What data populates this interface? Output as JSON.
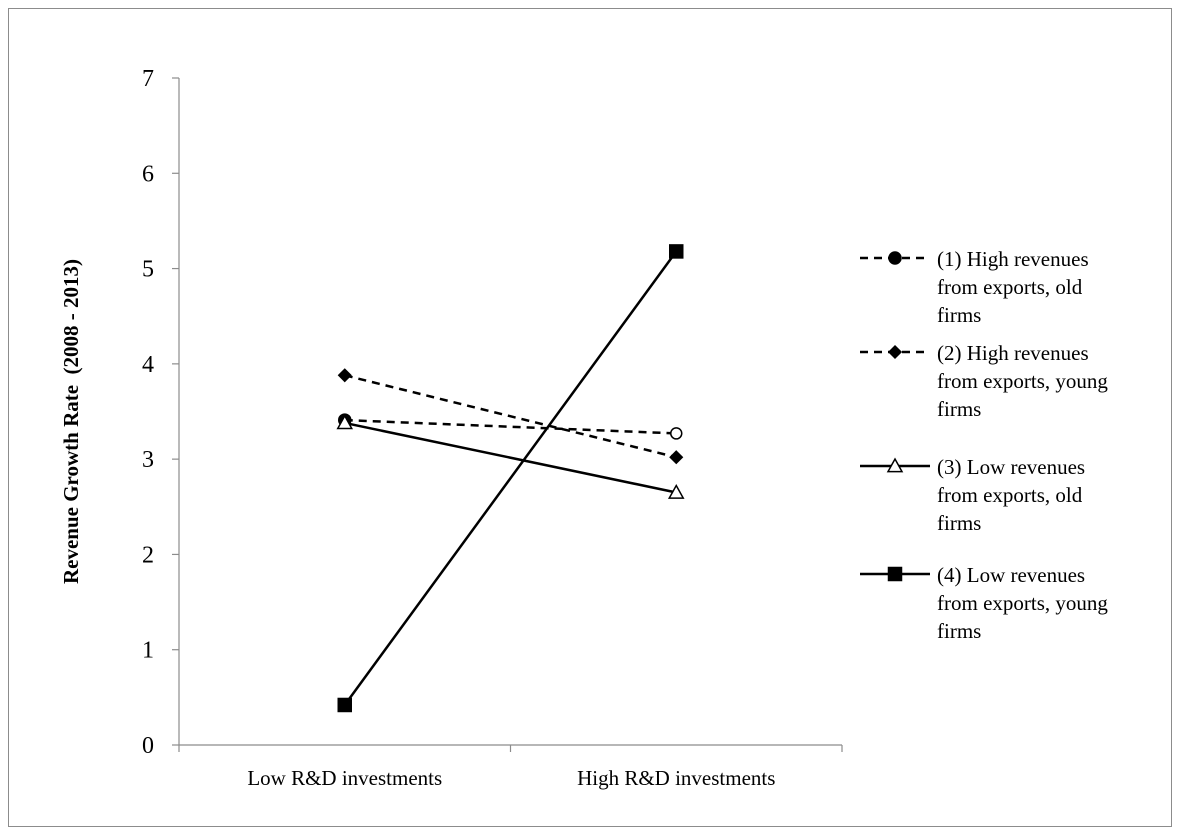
{
  "chart_data": {
    "type": "line",
    "title": "",
    "xlabel": "",
    "ylabel": "Revenue Growth Rate  (2008 - 2013)",
    "categories": [
      "Low R&D investments",
      "High R&D investments"
    ],
    "ylim": [
      0,
      7
    ],
    "yticks": [
      0,
      1,
      2,
      3,
      4,
      5,
      6,
      7
    ],
    "grid": false,
    "legend_position": "right",
    "series": [
      {
        "name": "(1) High revenues from exports, old firms",
        "legend_lines": [
          "(1) High revenues",
          "from exports, old",
          "firms"
        ],
        "values": [
          3.41,
          3.27
        ],
        "line_style": "dashed",
        "markers": [
          "filled-circle",
          "open-circle"
        ],
        "color": "#000000"
      },
      {
        "name": "(2) High revenues from exports, young firms",
        "legend_lines": [
          "(2) High revenues",
          "from exports, young",
          "firms"
        ],
        "values": [
          3.88,
          3.02
        ],
        "line_style": "dashed",
        "markers": [
          "filled-diamond",
          "filled-diamond"
        ],
        "color": "#000000"
      },
      {
        "name": "(3) Low revenues from exports, old firms",
        "legend_lines": [
          "(3) Low revenues",
          "from exports, old",
          "firms"
        ],
        "values": [
          3.38,
          2.65
        ],
        "line_style": "solid",
        "markers": [
          "open-triangle",
          "open-triangle"
        ],
        "color": "#000000"
      },
      {
        "name": "(4) Low revenues from exports, young firms",
        "legend_lines": [
          "(4) Low revenues",
          "from exports, young",
          "firms"
        ],
        "values": [
          0.42,
          5.18
        ],
        "line_style": "solid",
        "markers": [
          "filled-square",
          "filled-square"
        ],
        "color": "#000000"
      }
    ]
  }
}
